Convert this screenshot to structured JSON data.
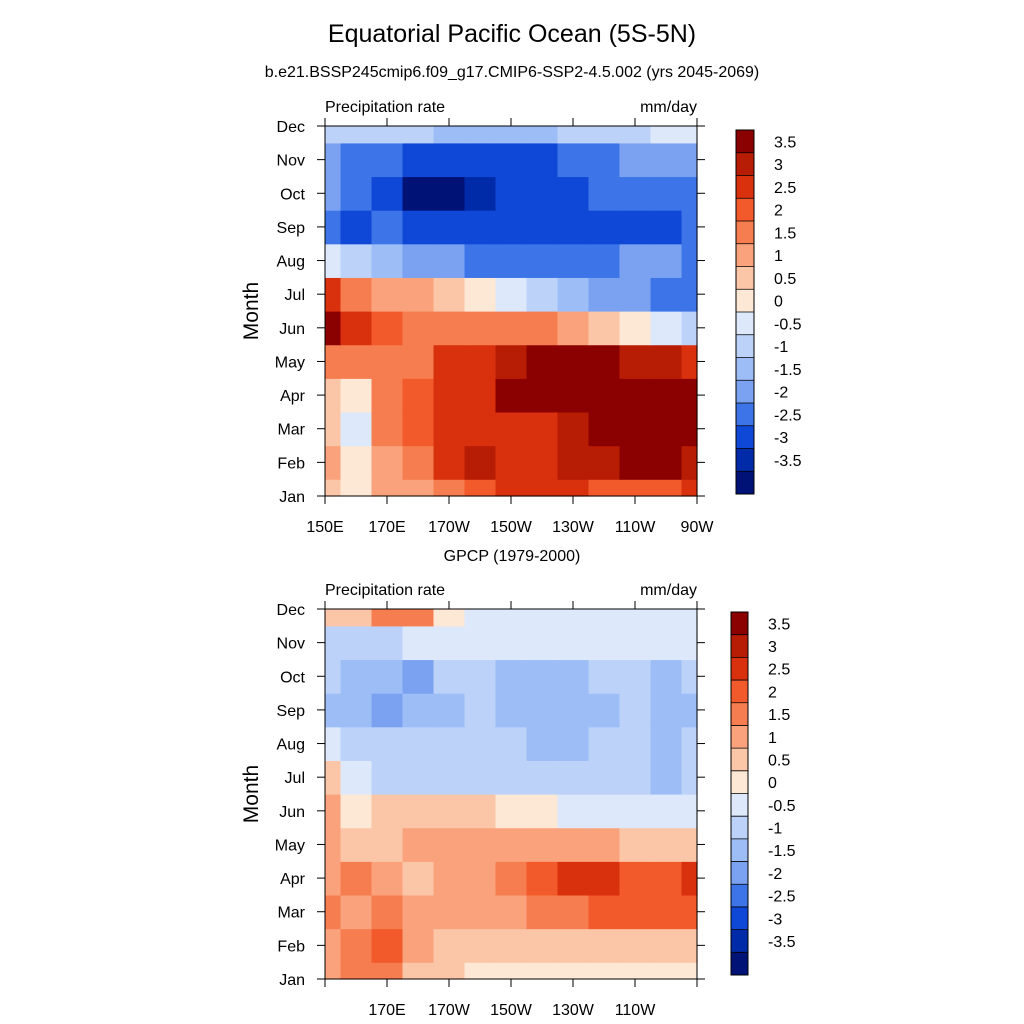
{
  "figure": {
    "title": "Equatorial Pacific Ocean (5S-5N)",
    "subtitle": "b.e21.BSSP245cmip6.f09_g17.CMIP6-SSP2-4.5.002 (yrs 2045-2069)",
    "second_panel_title": "GPCP (1979-2000)"
  },
  "chart_data": [
    {
      "type": "heatmap",
      "title": "b.e21.BSSP245cmip6.f09_g17.CMIP6-SSP2-4.5.002 (yrs 2045-2069)",
      "left_string": "Precipitation rate",
      "right_string": "mm/day",
      "ylabel": "Month",
      "xlabel": "",
      "x_ticks": [
        "150E",
        "170E",
        "170W",
        "150W",
        "130W",
        "110W",
        "90W"
      ],
      "y_ticks": [
        "Jan",
        "Feb",
        "Mar",
        "Apr",
        "May",
        "Jun",
        "Jul",
        "Aug",
        "Sep",
        "Oct",
        "Nov",
        "Dec"
      ],
      "x_range_deg_east": [
        150,
        270
      ],
      "units": "mm/day",
      "columns_lon": [
        150,
        160,
        170,
        180,
        190,
        200,
        210,
        220,
        230,
        240,
        250,
        260,
        270
      ],
      "values": [
        [
          0.5,
          0.3,
          1.0,
          1.2,
          1.5,
          2.0,
          2.5,
          2.5,
          2.5,
          2.0,
          2.0,
          2.2,
          2.5
        ],
        [
          1.0,
          0.0,
          1.2,
          1.8,
          2.5,
          3.0,
          2.8,
          2.5,
          3.0,
          3.2,
          3.8,
          3.8,
          3.2
        ],
        [
          0.8,
          -0.3,
          1.5,
          2.0,
          2.5,
          2.5,
          2.5,
          2.5,
          3.0,
          3.5,
          3.8,
          3.8,
          3.8
        ],
        [
          0.8,
          0.3,
          1.5,
          2.2,
          2.5,
          2.8,
          3.5,
          3.8,
          3.8,
          3.8,
          3.8,
          3.8,
          3.8
        ],
        [
          1.5,
          1.5,
          1.5,
          1.8,
          2.5,
          2.5,
          3.0,
          3.8,
          3.8,
          3.5,
          3.2,
          3.0,
          2.5
        ],
        [
          3.5,
          2.5,
          2.0,
          1.5,
          1.5,
          1.5,
          1.5,
          1.5,
          1.0,
          0.5,
          0.0,
          -0.5,
          -0.8
        ],
        [
          2.5,
          1.5,
          1.2,
          1.0,
          0.5,
          0.2,
          -0.5,
          -1.0,
          -1.5,
          -2.0,
          -2.0,
          -2.2,
          -2.5
        ],
        [
          -0.5,
          -1.0,
          -1.5,
          -1.8,
          -2.0,
          -2.2,
          -2.5,
          -2.5,
          -2.5,
          -2.5,
          -2.0,
          -2.0,
          -2.3
        ],
        [
          -2.5,
          -3.0,
          -2.5,
          -2.8,
          -3.0,
          -3.0,
          -3.0,
          -3.0,
          -3.0,
          -3.0,
          -3.0,
          -2.8,
          -2.5
        ],
        [
          -2.0,
          -2.5,
          -2.8,
          -3.8,
          -3.8,
          -3.5,
          -3.0,
          -3.0,
          -3.0,
          -2.5,
          -2.5,
          -2.5,
          -2.5
        ],
        [
          -2.0,
          -2.5,
          -2.5,
          -3.0,
          -3.0,
          -3.0,
          -3.0,
          -2.8,
          -2.5,
          -2.5,
          -2.0,
          -2.0,
          -2.0
        ],
        [
          -1.0,
          -0.8,
          -1.0,
          -1.0,
          -1.5,
          -1.5,
          -1.5,
          -1.5,
          -1.0,
          -1.0,
          -0.8,
          -0.5,
          -0.3
        ]
      ]
    },
    {
      "type": "heatmap",
      "title": "GPCP (1979-2000)",
      "left_string": "Precipitation rate",
      "right_string": "mm/day",
      "ylabel": "Month",
      "xlabel": "",
      "x_ticks": [
        "170E",
        "170W",
        "150W",
        "130W",
        "110W"
      ],
      "y_ticks": [
        "Jan",
        "Feb",
        "Mar",
        "Apr",
        "May",
        "Jun",
        "Jul",
        "Aug",
        "Sep",
        "Oct",
        "Nov",
        "Dec"
      ],
      "x_range_deg_east": [
        150,
        270
      ],
      "units": "mm/day",
      "columns_lon": [
        150,
        160,
        170,
        180,
        190,
        200,
        210,
        220,
        230,
        240,
        250,
        260,
        270
      ],
      "values": [
        [
          1.0,
          1.5,
          1.8,
          0.5,
          0.5,
          0.3,
          0.3,
          0.3,
          0.0,
          0.3,
          0.3,
          0.3,
          0.2
        ],
        [
          1.2,
          1.5,
          2.0,
          1.0,
          0.5,
          0.5,
          0.5,
          0.5,
          0.5,
          0.5,
          0.5,
          0.5,
          0.5
        ],
        [
          1.5,
          1.2,
          1.5,
          1.2,
          1.0,
          1.0,
          1.2,
          1.5,
          1.8,
          2.0,
          2.0,
          2.0,
          2.0
        ],
        [
          1.0,
          1.5,
          1.2,
          0.8,
          1.0,
          1.2,
          1.5,
          2.0,
          2.5,
          2.5,
          2.0,
          2.3,
          2.5
        ],
        [
          1.0,
          0.8,
          0.8,
          1.2,
          1.2,
          1.0,
          1.0,
          1.0,
          1.0,
          1.0,
          0.8,
          0.5,
          0.5
        ],
        [
          1.0,
          0.0,
          0.5,
          0.8,
          0.8,
          0.5,
          0.2,
          0.0,
          -0.3,
          -0.5,
          -0.5,
          -0.5,
          -0.5
        ],
        [
          0.8,
          -0.5,
          -0.8,
          -0.8,
          -0.8,
          -1.0,
          -1.0,
          -1.0,
          -1.0,
          -1.0,
          -1.0,
          -1.2,
          -1.0
        ],
        [
          -0.5,
          -0.8,
          -1.0,
          -1.0,
          -1.0,
          -1.0,
          -1.0,
          -1.3,
          -1.3,
          -1.0,
          -1.0,
          -1.5,
          -1.0
        ],
        [
          -1.5,
          -1.2,
          -2.0,
          -1.5,
          -1.2,
          -1.0,
          -1.5,
          -1.5,
          -1.5,
          -1.5,
          -1.0,
          -1.5,
          -1.5
        ],
        [
          -1.0,
          -1.2,
          -1.5,
          -2.0,
          -1.0,
          -1.0,
          -1.3,
          -1.3,
          -1.3,
          -1.0,
          -1.0,
          -1.3,
          -1.0
        ],
        [
          -0.8,
          -1.0,
          -1.0,
          -0.5,
          -0.5,
          -0.5,
          -0.5,
          -0.5,
          -0.3,
          -0.3,
          -0.5,
          -0.5,
          -0.5
        ],
        [
          0.5,
          0.8,
          1.8,
          1.5,
          0.3,
          -0.3,
          -0.5,
          -0.5,
          -0.5,
          -0.5,
          -0.5,
          -0.5,
          -0.5
        ]
      ]
    }
  ],
  "colorbar": {
    "labels": [
      "3.5",
      "3",
      "2.5",
      "2",
      "1.5",
      "1",
      "0.5",
      "0",
      "-0.5",
      "-1",
      "-1.5",
      "-2",
      "-2.5",
      "-3",
      "-3.5"
    ],
    "levels": [
      3.5,
      3,
      2.5,
      2,
      1.5,
      1,
      0.5,
      0,
      -0.5,
      -1,
      -1.5,
      -2,
      -2.5,
      -3,
      -3.5
    ],
    "colors_top_to_bottom": [
      "#8b0000",
      "#b71c05",
      "#d9310d",
      "#f25a2b",
      "#f57d4f",
      "#f9a27c",
      "#fbc6a7",
      "#fde8d6",
      "#dde9fa",
      "#bcd2f8",
      "#9dbdf6",
      "#7aa2f1",
      "#3d75e8",
      "#0f47d6",
      "#002ba8",
      "#001276"
    ]
  }
}
